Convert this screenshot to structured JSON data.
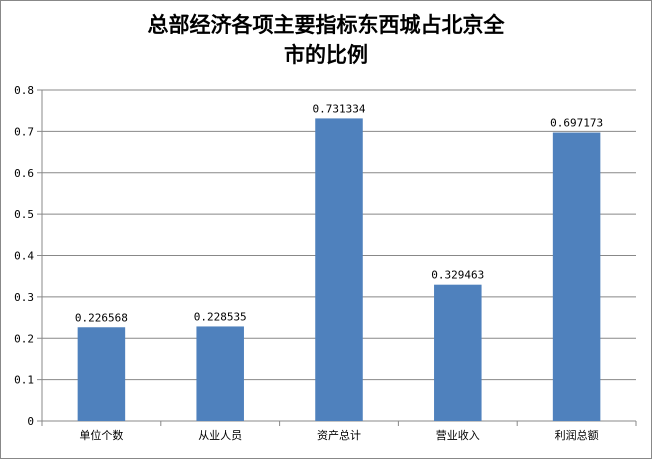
{
  "chart_data": {
    "type": "bar",
    "title_lines": [
      "总部经济各项主要指标东西城占北京全",
      "市的比例"
    ],
    "categories": [
      "单位个数",
      "从业人员",
      "资产总计",
      "营业收入",
      "利润总额"
    ],
    "values": [
      0.226568,
      0.228535,
      0.731334,
      0.329463,
      0.697173
    ],
    "data_labels": [
      "0.226568",
      "0.228535",
      "0.731334",
      "0.329463",
      "0.697173"
    ],
    "y_ticks": [
      "0",
      "0.1",
      "0.2",
      "0.3",
      "0.4",
      "0.5",
      "0.6",
      "0.7",
      "0.8"
    ],
    "ylim": [
      0,
      0.8
    ],
    "grid": true,
    "legend": "none",
    "bar_color": "#4F81BD",
    "grid_color": "#888888"
  }
}
